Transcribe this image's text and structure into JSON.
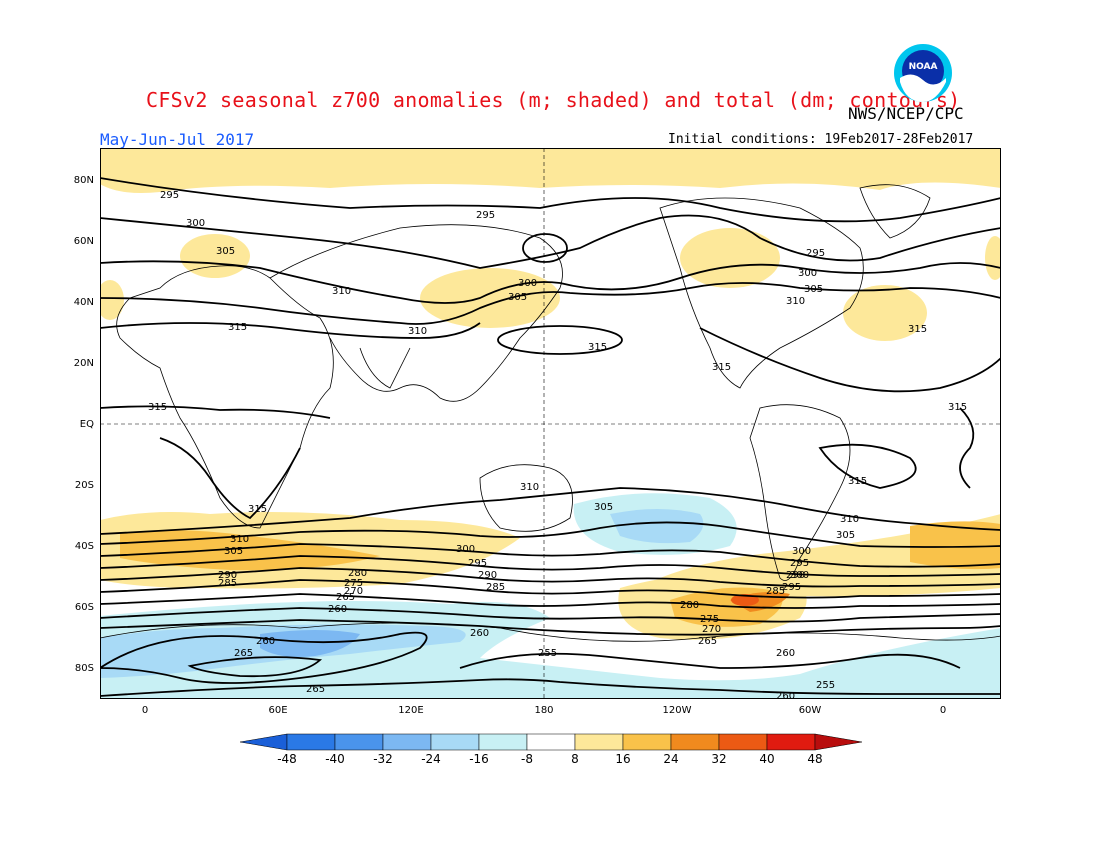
{
  "title": "CFSv2 seasonal z700 anomalies (m; shaded) and total (dm; contours)",
  "agency": "NWS/NCEP/CPC",
  "logo_text": "NOAA",
  "period": "May-Jun-Jul 2017",
  "initial_conditions": "Initial conditions: 19Feb2017-28Feb2017",
  "lat_labels": [
    "80N",
    "60N",
    "40N",
    "20N",
    "EQ",
    "20S",
    "40S",
    "60S",
    "80S"
  ],
  "lon_labels": [
    "0",
    "60E",
    "120E",
    "180",
    "120W",
    "60W",
    "0"
  ],
  "colorbar": {
    "labels": [
      "-48",
      "-40",
      "-32",
      "-24",
      "-16",
      "-8",
      "8",
      "16",
      "24",
      "32",
      "40",
      "48"
    ],
    "colors": [
      "#1a5fd8",
      "#2a79e6",
      "#4a94ec",
      "#7cb8f2",
      "#a8daf6",
      "#c8f0f4",
      "#ffffff",
      "#fde89a",
      "#f9c24a",
      "#f08a1e",
      "#ec5a14",
      "#e01b10",
      "#b80d0d"
    ]
  },
  "contour_labels": [
    {
      "text": "295"
    },
    {
      "text": "295"
    },
    {
      "text": "300"
    },
    {
      "text": "305"
    },
    {
      "text": "310"
    },
    {
      "text": "315"
    },
    {
      "text": "310"
    },
    {
      "text": "300"
    },
    {
      "text": "305"
    },
    {
      "text": "315"
    },
    {
      "text": "295"
    },
    {
      "text": "300"
    },
    {
      "text": "305"
    },
    {
      "text": "310"
    },
    {
      "text": "315"
    },
    {
      "text": "315"
    },
    {
      "text": "315"
    },
    {
      "text": "315"
    },
    {
      "text": "310"
    },
    {
      "text": "315"
    },
    {
      "text": "315"
    },
    {
      "text": "305"
    },
    {
      "text": "310"
    },
    {
      "text": "305"
    },
    {
      "text": "310"
    },
    {
      "text": "305"
    },
    {
      "text": "300"
    },
    {
      "text": "295"
    },
    {
      "text": "290"
    },
    {
      "text": "285"
    },
    {
      "text": "300"
    },
    {
      "text": "295"
    },
    {
      "text": "290"
    },
    {
      "text": "285"
    },
    {
      "text": "280"
    },
    {
      "text": "275"
    },
    {
      "text": "270"
    },
    {
      "text": "265"
    },
    {
      "text": "260"
    },
    {
      "text": "300"
    },
    {
      "text": "295"
    },
    {
      "text": "290"
    },
    {
      "text": "285"
    },
    {
      "text": "280"
    },
    {
      "text": "275"
    },
    {
      "text": "270"
    },
    {
      "text": "265"
    },
    {
      "text": "260"
    },
    {
      "text": "260"
    },
    {
      "text": "265"
    },
    {
      "text": "265"
    },
    {
      "text": "260"
    },
    {
      "text": "255"
    },
    {
      "text": "255"
    },
    {
      "text": "260"
    }
  ]
}
